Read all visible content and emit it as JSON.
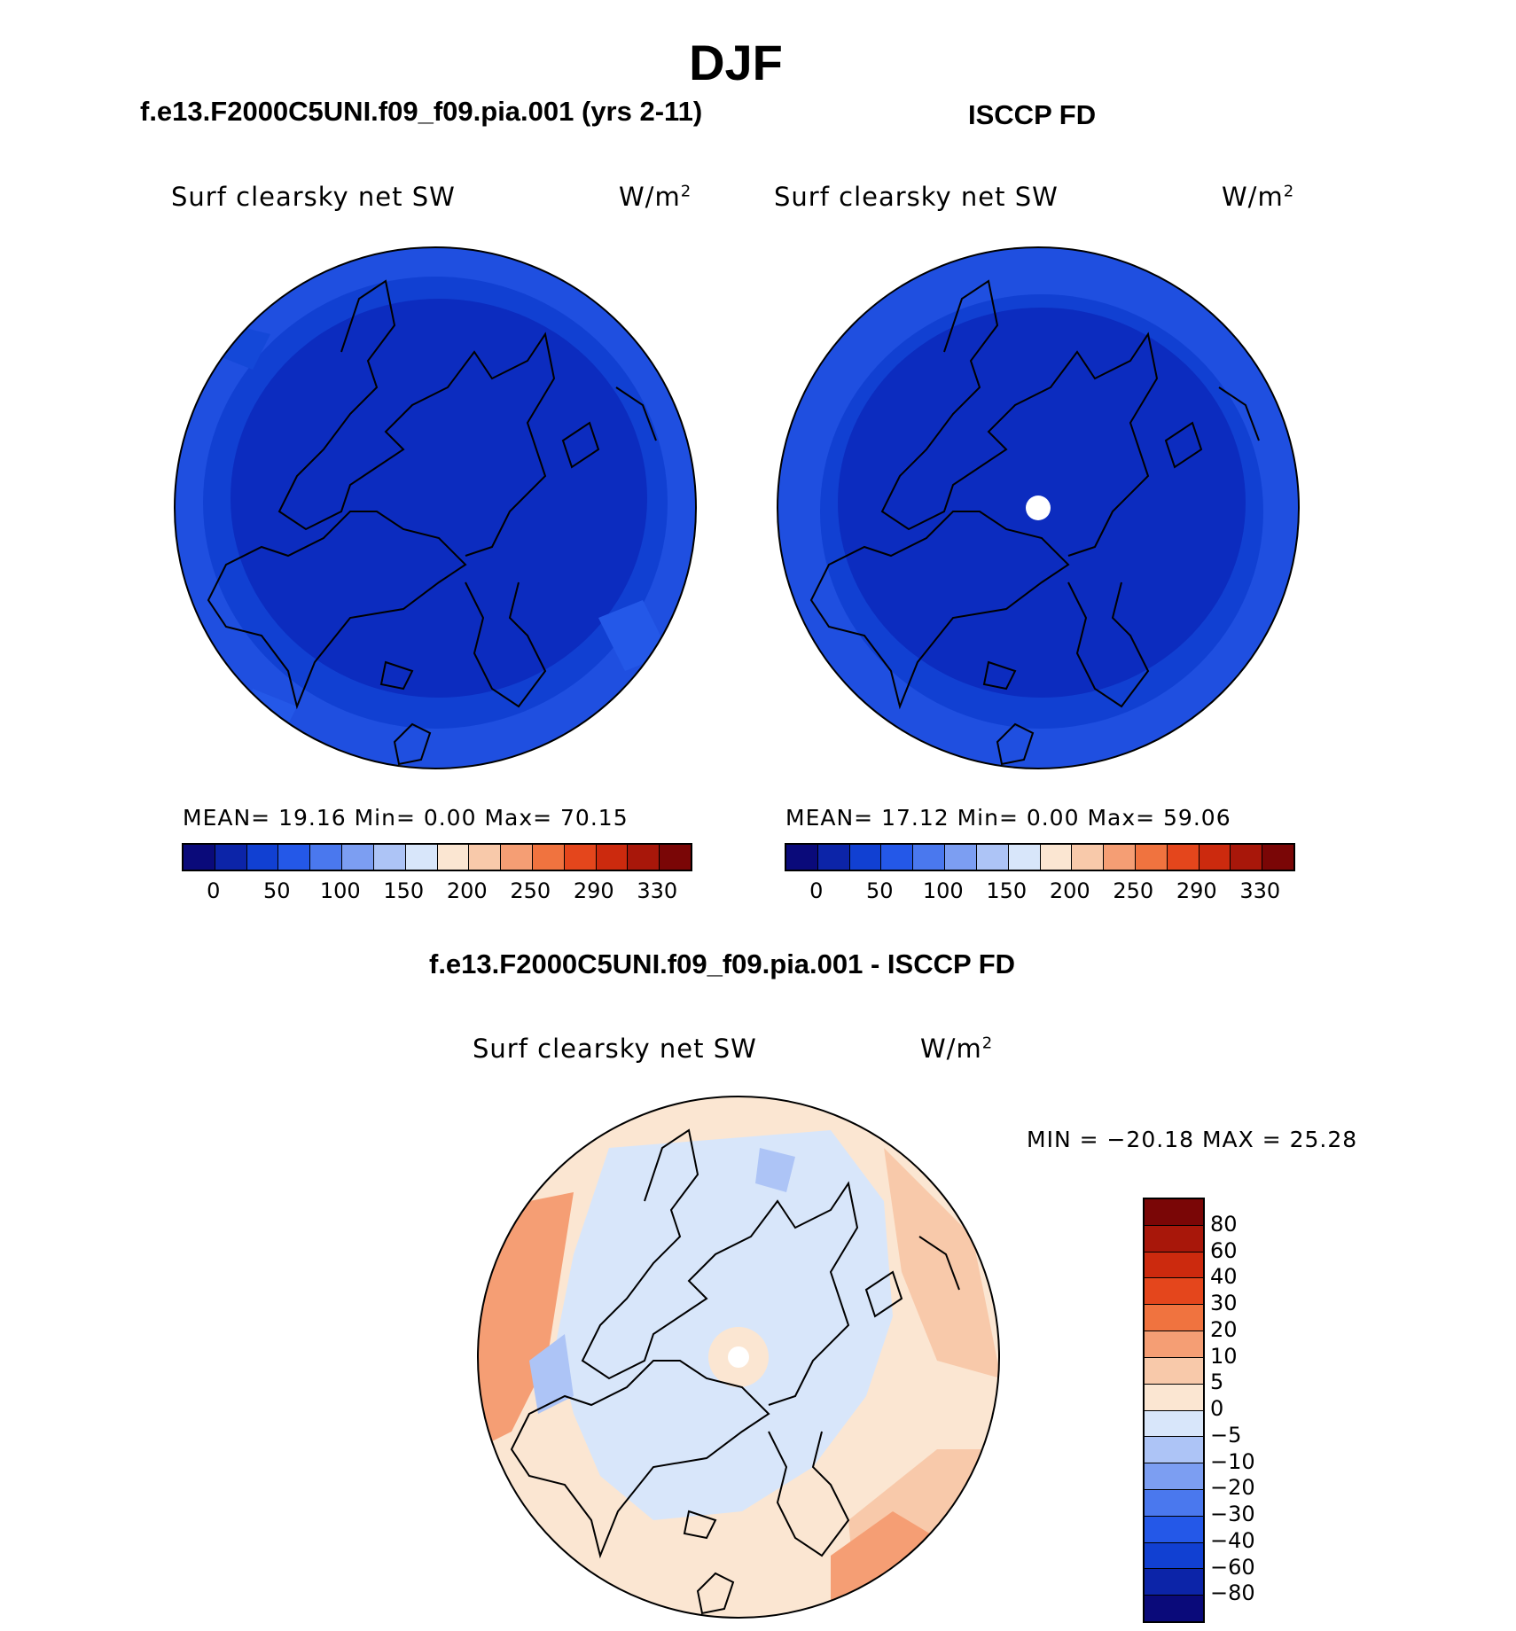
{
  "title": "DJF",
  "panels": {
    "left": {
      "title": "f.e13.F2000C5UNI.f09_f09.pia.001 (yrs 2-11)",
      "variable": "Surf clearsky net SW",
      "units": "W/m",
      "units_sup": "2",
      "stats": "MEAN=   19.16  Min=    0.00  Max=   70.15"
    },
    "right": {
      "title": "ISCCP FD",
      "variable": "Surf clearsky net SW",
      "units": "W/m",
      "units_sup": "2",
      "stats": "MEAN=   17.12  Min=    0.00  Max=   59.06"
    },
    "diff": {
      "title": "f.e13.F2000C5UNI.f09_f09.pia.001 - ISCCP FD",
      "variable": "Surf clearsky net SW",
      "units": "W/m",
      "units_sup": "2",
      "stats": "MIN = −20.18 MAX =   25.28"
    }
  },
  "colorbar_abs": {
    "colors": [
      "#0a0a7a",
      "#0c24a8",
      "#1140d2",
      "#2458e8",
      "#4a78ee",
      "#7c9ef2",
      "#adc4f6",
      "#d8e6fa",
      "#fbe6d2",
      "#f8c9aa",
      "#f59e74",
      "#f0733f",
      "#e4461c",
      "#cc2a0e",
      "#a8170a",
      "#7a0606"
    ],
    "labels": [
      "0",
      "50",
      "100",
      "150",
      "200",
      "250",
      "290",
      "330"
    ]
  },
  "colorbar_diff": {
    "colors": [
      "#7a0606",
      "#a8170a",
      "#cc2a0e",
      "#e4461c",
      "#f0733f",
      "#f59e74",
      "#f8c9aa",
      "#fbe6d2",
      "#d8e6fa",
      "#adc4f6",
      "#7c9ef2",
      "#4a78ee",
      "#2458e8",
      "#1140d2",
      "#0c24a8",
      "#0a0a7a"
    ],
    "labels": [
      "80",
      "60",
      "40",
      "30",
      "20",
      "10",
      "5",
      "0",
      "−5",
      "−10",
      "−20",
      "−30",
      "−40",
      "−60",
      "−80"
    ]
  }
}
